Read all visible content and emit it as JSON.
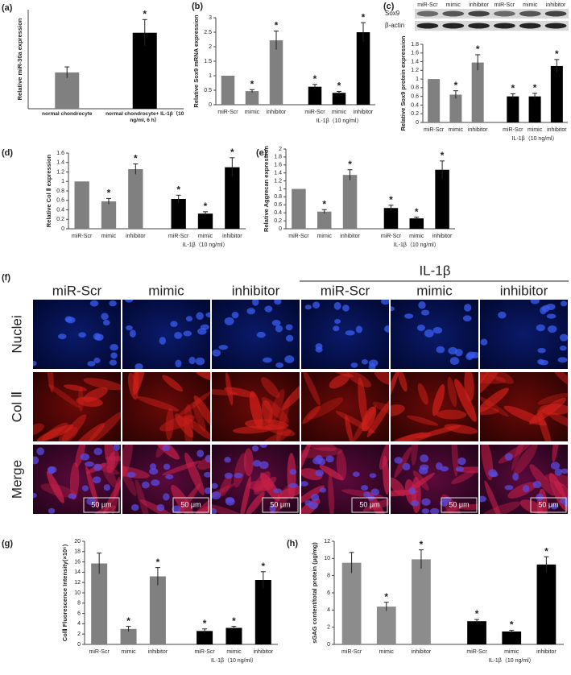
{
  "chart_data": [
    {
      "type": "bar",
      "panel": "(a)",
      "ylabel": "Relative miR-30a expression",
      "categories": [
        "normal chondrocyte",
        "normal chondrocyte+ IL-1β（10 ng/ml, 6 h）"
      ],
      "values": [
        0.33,
        0.69
      ],
      "errors": [
        0.05,
        0.12
      ],
      "colors": [
        "#808080",
        "#000000"
      ],
      "significance": [
        null,
        "*"
      ],
      "ylim": [
        0,
        0.9
      ]
    },
    {
      "type": "bar",
      "panel": "(b)",
      "ylabel": "Relative Sox9 mRNA expression",
      "categories": [
        "miR-Scr",
        "mimic",
        "inhibitor",
        "miR-Scr",
        "mimic",
        "inhibitor"
      ],
      "group_label": "IL-1β（10 ng/ml）",
      "values": [
        1,
        0.47,
        2.22,
        0.62,
        0.41,
        2.5
      ],
      "errors": [
        null,
        0.05,
        0.32,
        0.08,
        0.05,
        0.33
      ],
      "colors": [
        "#808080",
        "#808080",
        "#808080",
        "#000000",
        "#000000",
        "#000000"
      ],
      "significance": [
        null,
        "*",
        "*",
        "*",
        "*",
        "*"
      ],
      "ylim": [
        0,
        3
      ],
      "yticks": [
        0,
        0.5,
        1,
        1.5,
        2,
        2.5,
        3
      ]
    },
    {
      "type": "bar",
      "panel": "(c)",
      "blot_rows": [
        "Sox9",
        "β-actin"
      ],
      "blot_lanes": [
        "miR-Scr",
        "mimic",
        "inhibitor",
        "miR-Scr",
        "mimic",
        "inhibitor"
      ],
      "ylabel": "Relative Sox9 protein expression",
      "categories": [
        "miR-Scr",
        "mimic",
        "inhibitor",
        "miR-Scr",
        "mimic",
        "inhibitor"
      ],
      "group_label": "IL-1β（10 ng/ml）",
      "values": [
        1,
        0.64,
        1.38,
        0.6,
        0.6,
        1.3
      ],
      "errors": [
        null,
        0.09,
        0.18,
        0.06,
        0.07,
        0.15
      ],
      "colors": [
        "#808080",
        "#808080",
        "#808080",
        "#000000",
        "#000000",
        "#000000"
      ],
      "significance": [
        null,
        "*",
        "*",
        "*",
        "*",
        "*"
      ],
      "ylim": [
        0,
        1.8
      ],
      "yticks": [
        0,
        0.2,
        0.4,
        0.6,
        0.8,
        1,
        1.2,
        1.4,
        1.6,
        1.8
      ]
    },
    {
      "type": "bar",
      "panel": "(d)",
      "ylabel": "Relative Col Ⅱ expression",
      "categories": [
        "miR-Scr",
        "mimic",
        "inhibitor",
        "miR-Scr",
        "mimic",
        "inhibitor"
      ],
      "group_label": "IL-1β（10 ng/ml）",
      "values": [
        1,
        0.58,
        1.26,
        0.63,
        0.32,
        1.3
      ],
      "errors": [
        null,
        0.06,
        0.11,
        0.08,
        0.04,
        0.2
      ],
      "colors": [
        "#808080",
        "#808080",
        "#808080",
        "#000000",
        "#000000",
        "#000000"
      ],
      "significance": [
        null,
        "*",
        "*",
        "*",
        "*",
        "*"
      ],
      "ylim": [
        0,
        1.6
      ],
      "yticks": [
        0,
        0.2,
        0.4,
        0.6,
        0.8,
        1,
        1.2,
        1.4,
        1.6
      ]
    },
    {
      "type": "bar",
      "panel": "(e)",
      "ylabel": "Relative Aggrecan expression",
      "categories": [
        "miR-Scr",
        "mimic",
        "inhibitor",
        "miR-Scr",
        "mimic",
        "inhibitor"
      ],
      "group_label": "IL-1β（10 ng/ml）",
      "values": [
        1,
        0.43,
        1.35,
        0.52,
        0.26,
        1.48
      ],
      "errors": [
        null,
        0.05,
        0.13,
        0.07,
        0.03,
        0.22
      ],
      "colors": [
        "#808080",
        "#808080",
        "#808080",
        "#000000",
        "#000000",
        "#000000"
      ],
      "significance": [
        null,
        "*",
        "*",
        "*",
        "*",
        "*"
      ],
      "ylim": [
        0,
        2
      ],
      "yticks": [
        0,
        0.2,
        0.4,
        0.6,
        0.8,
        1,
        1.2,
        1.4,
        1.6,
        1.8,
        2
      ]
    },
    {
      "type": "bar",
      "panel": "(g)",
      "ylabel": "ColⅡ Fluorescence Intensity(×10⁵)",
      "categories": [
        "miR-Scr",
        "mimic",
        "inhibitor",
        "miR-Scr",
        "mimic",
        "inhibitor"
      ],
      "group_label": "IL-1β（10 ng/ml）",
      "values": [
        15.7,
        3,
        13.2,
        2.6,
        3.2,
        12.5
      ],
      "errors": [
        2,
        0.5,
        1.7,
        0.4,
        0.3,
        1.6
      ],
      "colors": [
        "#808080",
        "#808080",
        "#808080",
        "#000000",
        "#000000",
        "#000000"
      ],
      "significance": [
        null,
        "*",
        "*",
        "*",
        "*",
        "*"
      ],
      "ylim": [
        0,
        20
      ],
      "yticks": [
        0,
        2,
        4,
        6,
        8,
        10,
        12,
        14,
        16,
        18,
        20
      ]
    },
    {
      "type": "bar",
      "panel": "(h)",
      "ylabel": "sGAG content/total protein (μg/mg)",
      "categories": [
        "miR-Scr",
        "mimic",
        "inhibitor",
        "miR-Scr",
        "mimic",
        "inhibitor"
      ],
      "group_label": "IL-1β（10 ng/ml）",
      "values": [
        9.5,
        4.4,
        9.9,
        2.7,
        1.5,
        9.3
      ],
      "errors": [
        1.2,
        0.5,
        1.1,
        0.2,
        0.15,
        0.9
      ],
      "colors": [
        "#8c8c8c",
        "#8c8c8c",
        "#8c8c8c",
        "#000000",
        "#000000",
        "#000000"
      ],
      "significance": [
        null,
        "*",
        "*",
        "*",
        "*",
        "*"
      ],
      "ylim": [
        0,
        12
      ],
      "yticks": [
        0,
        2,
        4,
        6,
        8,
        10,
        12
      ]
    }
  ],
  "figure_f": {
    "panel": "(f)",
    "treatment_label": "IL-1β",
    "columns": [
      "miR-Scr",
      "mimic",
      "inhibitor",
      "miR-Scr",
      "mimic",
      "inhibitor"
    ],
    "rows": [
      "Nuclei",
      "Col Ⅱ",
      "Merge"
    ],
    "scale_bar": "50 μm"
  }
}
